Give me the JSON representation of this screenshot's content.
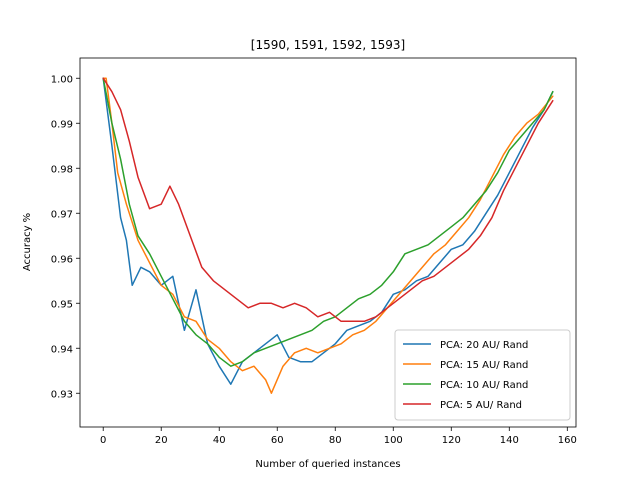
{
  "chart_data": {
    "type": "line",
    "title": "[1590, 1591, 1592, 1593]",
    "xlabel": "Number of queried instances",
    "ylabel": "Accuracy %",
    "xlim": [
      -8,
      163
    ],
    "ylim": [
      0.9225,
      1.0045
    ],
    "xticks": [
      0,
      20,
      40,
      60,
      80,
      100,
      120,
      140,
      160
    ],
    "yticks": [
      0.93,
      0.94,
      0.95,
      0.96,
      0.97,
      0.98,
      0.99,
      1.0
    ],
    "ytick_labels": [
      "0.93",
      "0.94",
      "0.95",
      "0.96",
      "0.97",
      "0.98",
      "0.99",
      "1.00"
    ],
    "grid": false,
    "legend_position": "lower-right",
    "series": [
      {
        "name": "PCA: 20 AU/ Rand",
        "color": "#1f77b4",
        "points": [
          [
            0,
            1.0
          ],
          [
            3,
            0.985
          ],
          [
            6,
            0.969
          ],
          [
            8,
            0.964
          ],
          [
            10,
            0.954
          ],
          [
            13,
            0.958
          ],
          [
            16,
            0.957
          ],
          [
            20,
            0.954
          ],
          [
            24,
            0.956
          ],
          [
            28,
            0.944
          ],
          [
            32,
            0.953
          ],
          [
            36,
            0.941
          ],
          [
            40,
            0.936
          ],
          [
            44,
            0.932
          ],
          [
            48,
            0.937
          ],
          [
            52,
            0.939
          ],
          [
            56,
            0.941
          ],
          [
            60,
            0.943
          ],
          [
            64,
            0.938
          ],
          [
            68,
            0.937
          ],
          [
            72,
            0.937
          ],
          [
            76,
            0.939
          ],
          [
            80,
            0.941
          ],
          [
            84,
            0.944
          ],
          [
            88,
            0.945
          ],
          [
            92,
            0.946
          ],
          [
            96,
            0.948
          ],
          [
            100,
            0.952
          ],
          [
            104,
            0.953
          ],
          [
            108,
            0.955
          ],
          [
            112,
            0.956
          ],
          [
            116,
            0.959
          ],
          [
            120,
            0.962
          ],
          [
            124,
            0.963
          ],
          [
            128,
            0.966
          ],
          [
            132,
            0.97
          ],
          [
            136,
            0.974
          ],
          [
            140,
            0.979
          ],
          [
            144,
            0.984
          ],
          [
            148,
            0.989
          ],
          [
            152,
            0.993
          ],
          [
            155,
            0.997
          ]
        ]
      },
      {
        "name": "PCA: 15 AU/ Rand",
        "color": "#ff7f0e",
        "points": [
          [
            0,
            1.0
          ],
          [
            1,
            1.0
          ],
          [
            3,
            0.99
          ],
          [
            5,
            0.979
          ],
          [
            8,
            0.972
          ],
          [
            12,
            0.964
          ],
          [
            16,
            0.959
          ],
          [
            20,
            0.954
          ],
          [
            24,
            0.952
          ],
          [
            28,
            0.947
          ],
          [
            32,
            0.946
          ],
          [
            36,
            0.942
          ],
          [
            40,
            0.94
          ],
          [
            44,
            0.937
          ],
          [
            48,
            0.935
          ],
          [
            52,
            0.936
          ],
          [
            56,
            0.933
          ],
          [
            58,
            0.93
          ],
          [
            62,
            0.936
          ],
          [
            66,
            0.939
          ],
          [
            70,
            0.94
          ],
          [
            74,
            0.939
          ],
          [
            78,
            0.94
          ],
          [
            82,
            0.941
          ],
          [
            86,
            0.943
          ],
          [
            90,
            0.944
          ],
          [
            94,
            0.946
          ],
          [
            98,
            0.949
          ],
          [
            102,
            0.952
          ],
          [
            106,
            0.955
          ],
          [
            110,
            0.958
          ],
          [
            114,
            0.961
          ],
          [
            118,
            0.963
          ],
          [
            122,
            0.966
          ],
          [
            126,
            0.969
          ],
          [
            130,
            0.973
          ],
          [
            134,
            0.978
          ],
          [
            138,
            0.983
          ],
          [
            142,
            0.987
          ],
          [
            146,
            0.99
          ],
          [
            150,
            0.992
          ],
          [
            155,
            0.996
          ]
        ]
      },
      {
        "name": "PCA: 10 AU/ Rand",
        "color": "#2ca02c",
        "points": [
          [
            0,
            1.0
          ],
          [
            3,
            0.99
          ],
          [
            6,
            0.982
          ],
          [
            9,
            0.972
          ],
          [
            12,
            0.965
          ],
          [
            16,
            0.961
          ],
          [
            20,
            0.956
          ],
          [
            24,
            0.951
          ],
          [
            28,
            0.946
          ],
          [
            32,
            0.943
          ],
          [
            36,
            0.941
          ],
          [
            40,
            0.938
          ],
          [
            44,
            0.936
          ],
          [
            48,
            0.937
          ],
          [
            52,
            0.939
          ],
          [
            56,
            0.94
          ],
          [
            60,
            0.941
          ],
          [
            64,
            0.942
          ],
          [
            68,
            0.943
          ],
          [
            72,
            0.944
          ],
          [
            76,
            0.946
          ],
          [
            80,
            0.947
          ],
          [
            84,
            0.949
          ],
          [
            88,
            0.951
          ],
          [
            92,
            0.952
          ],
          [
            96,
            0.954
          ],
          [
            100,
            0.957
          ],
          [
            104,
            0.961
          ],
          [
            108,
            0.962
          ],
          [
            112,
            0.963
          ],
          [
            116,
            0.965
          ],
          [
            120,
            0.967
          ],
          [
            124,
            0.969
          ],
          [
            128,
            0.972
          ],
          [
            132,
            0.975
          ],
          [
            136,
            0.979
          ],
          [
            140,
            0.984
          ],
          [
            144,
            0.987
          ],
          [
            148,
            0.99
          ],
          [
            152,
            0.993
          ],
          [
            155,
            0.997
          ]
        ]
      },
      {
        "name": "PCA: 5 AU/ Rand",
        "color": "#d62728",
        "points": [
          [
            0,
            1.0
          ],
          [
            3,
            0.997
          ],
          [
            6,
            0.993
          ],
          [
            9,
            0.986
          ],
          [
            12,
            0.978
          ],
          [
            16,
            0.971
          ],
          [
            20,
            0.972
          ],
          [
            23,
            0.976
          ],
          [
            26,
            0.972
          ],
          [
            30,
            0.965
          ],
          [
            34,
            0.958
          ],
          [
            38,
            0.955
          ],
          [
            42,
            0.953
          ],
          [
            46,
            0.951
          ],
          [
            50,
            0.949
          ],
          [
            54,
            0.95
          ],
          [
            58,
            0.95
          ],
          [
            62,
            0.949
          ],
          [
            66,
            0.95
          ],
          [
            70,
            0.949
          ],
          [
            74,
            0.947
          ],
          [
            78,
            0.948
          ],
          [
            82,
            0.946
          ],
          [
            86,
            0.946
          ],
          [
            90,
            0.946
          ],
          [
            94,
            0.947
          ],
          [
            98,
            0.949
          ],
          [
            102,
            0.951
          ],
          [
            106,
            0.953
          ],
          [
            110,
            0.955
          ],
          [
            114,
            0.956
          ],
          [
            118,
            0.958
          ],
          [
            122,
            0.96
          ],
          [
            126,
            0.962
          ],
          [
            130,
            0.965
          ],
          [
            134,
            0.969
          ],
          [
            138,
            0.975
          ],
          [
            142,
            0.98
          ],
          [
            146,
            0.985
          ],
          [
            150,
            0.99
          ],
          [
            155,
            0.995
          ]
        ]
      }
    ]
  }
}
